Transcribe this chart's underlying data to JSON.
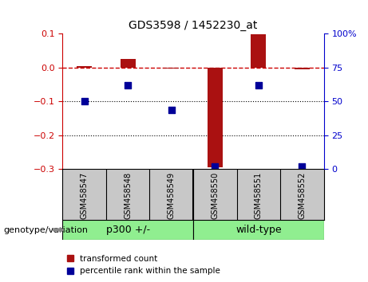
{
  "title": "GDS3598 / 1452230_at",
  "samples": [
    "GSM458547",
    "GSM458548",
    "GSM458549",
    "GSM458550",
    "GSM458551",
    "GSM458552"
  ],
  "groups": [
    "p300 +/-",
    "p300 +/-",
    "p300 +/-",
    "wild-type",
    "wild-type",
    "wild-type"
  ],
  "group_labels": [
    "p300 +/-",
    "wild-type"
  ],
  "bar_values": [
    0.004,
    0.025,
    -0.003,
    -0.295,
    0.098,
    -0.004
  ],
  "dot_values_pct": [
    50,
    62,
    44,
    2,
    62,
    2
  ],
  "ylim_left": [
    -0.3,
    0.1
  ],
  "ylim_right": [
    0,
    100
  ],
  "yticks_left": [
    -0.3,
    -0.2,
    -0.1,
    0.0,
    0.1
  ],
  "yticks_right": [
    0,
    25,
    50,
    75,
    100
  ],
  "ytick_labels_right": [
    "0",
    "25",
    "50",
    "75",
    "100%"
  ],
  "bar_color": "#aa1111",
  "dot_color": "#000099",
  "hline_color": "#cc0000",
  "dotted_lines": [
    -0.1,
    -0.2
  ],
  "label_transformed": "transformed count",
  "label_percentile": "percentile rank within the sample",
  "bar_width": 0.35,
  "bg_color": "#ffffff",
  "axis_color_left": "#cc0000",
  "axis_color_right": "#0000cc",
  "genotype_label": "genotype/variation",
  "sample_bg": "#c8c8c8",
  "group_color": "#90ee90"
}
